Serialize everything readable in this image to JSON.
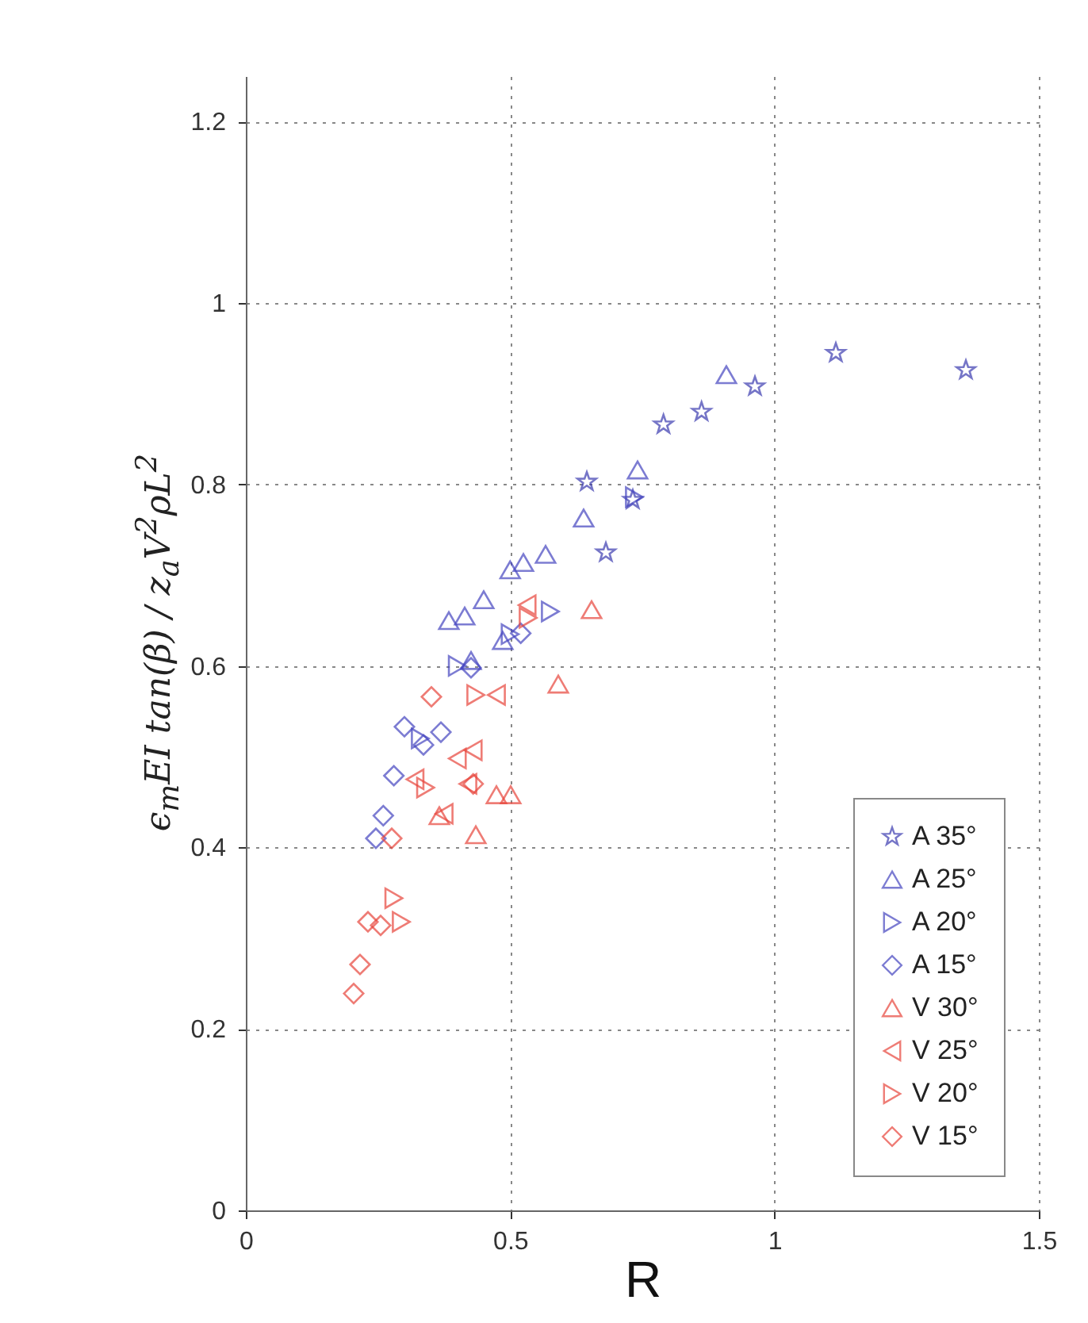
{
  "chart_data": {
    "type": "scatter",
    "xlabel": "R",
    "ylabel": "ϵ$_{m}$EI tan(β) / z$_{a}$V$^{2}$ρL$^{2}$",
    "xlim": [
      0,
      1.5
    ],
    "xticks": [
      0,
      0.5,
      1,
      1.5
    ],
    "ylim": [
      0,
      1.25
    ],
    "yticks": [
      0,
      0.2,
      0.4,
      0.6,
      0.8,
      1,
      1.2
    ],
    "grid": true,
    "legend": "bottom right",
    "series": [
      {
        "name": "A 35°",
        "color": "#3b3bb0",
        "marker": "star",
        "x": [
          0.645,
          0.681,
          0.732,
          0.79,
          0.862,
          0.963,
          1.116,
          1.362
        ],
        "values": [
          0.803,
          0.725,
          0.783,
          0.866,
          0.88,
          0.908,
          0.945,
          0.926
        ]
      },
      {
        "name": "A 25°",
        "color": "#4545c0",
        "marker": "triangle",
        "x": [
          0.909,
          0.741,
          0.639,
          0.567,
          0.525,
          0.5,
          0.45,
          0.414,
          0.384,
          0.486,
          0.426
        ],
        "values": [
          0.921,
          0.816,
          0.763,
          0.723,
          0.714,
          0.706,
          0.673,
          0.655,
          0.65,
          0.628,
          0.606
        ]
      },
      {
        "name": "A 20°",
        "color": "#4545c0",
        "marker": "triangle-right",
        "x": [
          0.735,
          0.576,
          0.5,
          0.33,
          0.4
        ],
        "values": [
          0.786,
          0.66,
          0.635,
          0.52,
          0.6
        ]
      },
      {
        "name": "A 15°",
        "color": "#4545c0",
        "marker": "diamond",
        "x": [
          0.52,
          0.426,
          0.3,
          0.336,
          0.369,
          0.28,
          0.26,
          0.246
        ],
        "values": [
          0.636,
          0.598,
          0.533,
          0.513,
          0.527,
          0.479,
          0.435,
          0.41
        ]
      },
      {
        "name": "V 30°",
        "color": "#e8453c",
        "marker": "triangle",
        "x": [
          0.654,
          0.591,
          0.501,
          0.474,
          0.435,
          0.366
        ],
        "values": [
          0.662,
          0.58,
          0.458,
          0.458,
          0.414,
          0.435
        ]
      },
      {
        "name": "V 25°",
        "color": "#e8453c",
        "marker": "triangle-left",
        "x": [
          0.532,
          0.474,
          0.4,
          0.43,
          0.32,
          0.375,
          0.42
        ],
        "values": [
          0.667,
          0.568,
          0.498,
          0.507,
          0.475,
          0.437,
          0.47
        ]
      },
      {
        "name": "V 20°",
        "color": "#e8453c",
        "marker": "triangle-right",
        "x": [
          0.534,
          0.435,
          0.34,
          0.28,
          0.294
        ],
        "values": [
          0.653,
          0.568,
          0.466,
          0.344,
          0.318
        ]
      },
      {
        "name": "V 15°",
        "color": "#e8453c",
        "marker": "diamond",
        "x": [
          0.351,
          0.43,
          0.276,
          0.231,
          0.255,
          0.216,
          0.204
        ],
        "values": [
          0.566,
          0.47,
          0.41,
          0.318,
          0.314,
          0.271,
          0.239
        ]
      }
    ]
  }
}
